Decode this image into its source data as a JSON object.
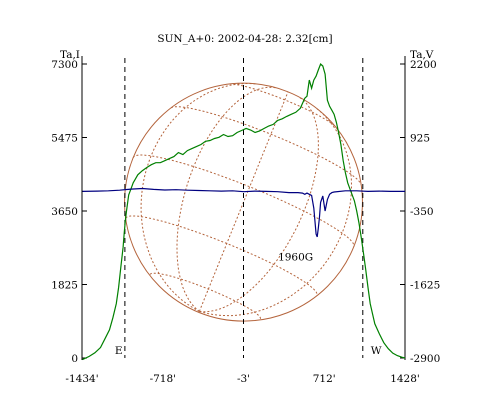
{
  "chart_data": {
    "type": "line",
    "title": "SUN_A+0: 2002-04-28: 2.32[cm]",
    "ylabel_left": "Ta,I",
    "ylabel_right": "Ta,V",
    "x_ticks": [
      "-1434'",
      "-718'",
      "-3'",
      "712'",
      "1428'"
    ],
    "x_tick_values": [
      -1434,
      -718,
      -3,
      712,
      1428
    ],
    "xlim": [
      -1434,
      1428
    ],
    "y_left_ticks": [
      "7300",
      "5475",
      "3650",
      "1825",
      "0"
    ],
    "y_left_tick_values": [
      7300,
      5475,
      3650,
      1825,
      0
    ],
    "y_left_lim": [
      0,
      7300
    ],
    "y_right_ticks": [
      "2200",
      "925",
      "-350",
      "-1625",
      "-2900"
    ],
    "y_right_tick_values": [
      2200,
      925,
      -350,
      -1625,
      -2900
    ],
    "y_right_lim": [
      -2900,
      2200
    ],
    "dashed_vertical_lines_x": [
      -1054,
      -3,
      1054
    ],
    "limb_labels": {
      "east": "E",
      "west": "W"
    },
    "annotation": {
      "text": "1960G",
      "x": 640,
      "y": 2520
    },
    "solar_disk": {
      "center_x": -3,
      "radius_arcmin": 1054,
      "color": "#b4643c"
    },
    "series": [
      {
        "axis": "left",
        "color": "#008000",
        "x": [
          -1430,
          -1370,
          -1320,
          -1270,
          -1230,
          -1190,
          -1160,
          -1130,
          -1110,
          -1090,
          -1070,
          -1060,
          -1050,
          -1040,
          -1030,
          -1020,
          -1000,
          -980,
          -960,
          -940,
          -900,
          -860,
          -820,
          -780,
          -740,
          -700,
          -660,
          -620,
          -580,
          -540,
          -500,
          -460,
          -420,
          -380,
          -340,
          -300,
          -260,
          -220,
          -180,
          -140,
          -100,
          -60,
          -20,
          20,
          60,
          100,
          140,
          180,
          220,
          260,
          300,
          340,
          380,
          420,
          460,
          500,
          540,
          560,
          580,
          600,
          620,
          640,
          660,
          680,
          700,
          720,
          740,
          760,
          780,
          800,
          820,
          840,
          860,
          880,
          900,
          920,
          940,
          960,
          980,
          1000,
          1020,
          1040,
          1060,
          1080,
          1100,
          1120,
          1140,
          1160,
          1200,
          1240,
          1280,
          1320,
          1360,
          1400,
          1428
        ],
        "y": [
          -40,
          40,
          130,
          260,
          480,
          700,
          1000,
          1350,
          1750,
          2250,
          2750,
          3100,
          3400,
          3650,
          3850,
          4050,
          4200,
          4350,
          4450,
          4550,
          4650,
          4730,
          4800,
          4850,
          4850,
          4900,
          4950,
          5000,
          5100,
          5050,
          5150,
          5200,
          5250,
          5300,
          5380,
          5400,
          5450,
          5480,
          5550,
          5500,
          5520,
          5600,
          5650,
          5700,
          5660,
          5600,
          5640,
          5700,
          5760,
          5800,
          5900,
          5940,
          6000,
          6050,
          6100,
          6200,
          6450,
          6500,
          6900,
          6700,
          6900,
          7000,
          7150,
          7300,
          7250,
          7050,
          6400,
          6250,
          6150,
          6050,
          5850,
          5600,
          5300,
          4900,
          4600,
          4350,
          4200,
          4050,
          3900,
          3650,
          3350,
          3000,
          2600,
          2200,
          1750,
          1350,
          1100,
          850,
          600,
          380,
          230,
          120,
          60,
          20,
          0
        ]
      },
      {
        "axis": "right",
        "color": "#000080",
        "x": [
          -1430,
          -1300,
          -1200,
          -1100,
          -1000,
          -900,
          -800,
          -700,
          -600,
          -500,
          -400,
          -300,
          -200,
          -100,
          0,
          100,
          200,
          300,
          400,
          480,
          520,
          540,
          560,
          580,
          600,
          620,
          640,
          650,
          660,
          670,
          680,
          700,
          720,
          740,
          760,
          780,
          800,
          900,
          1000,
          1100,
          1200,
          1300,
          1428
        ],
        "y": [
          -10,
          -5,
          0,
          10,
          30,
          40,
          25,
          15,
          20,
          10,
          5,
          0,
          -5,
          0,
          -15,
          -5,
          -10,
          -15,
          -30,
          -30,
          -40,
          -60,
          -40,
          -60,
          -80,
          -300,
          -750,
          -800,
          -650,
          -450,
          -200,
          -90,
          -350,
          -150,
          -60,
          -30,
          -20,
          0,
          0,
          -10,
          -5,
          -10,
          -10
        ]
      }
    ]
  }
}
